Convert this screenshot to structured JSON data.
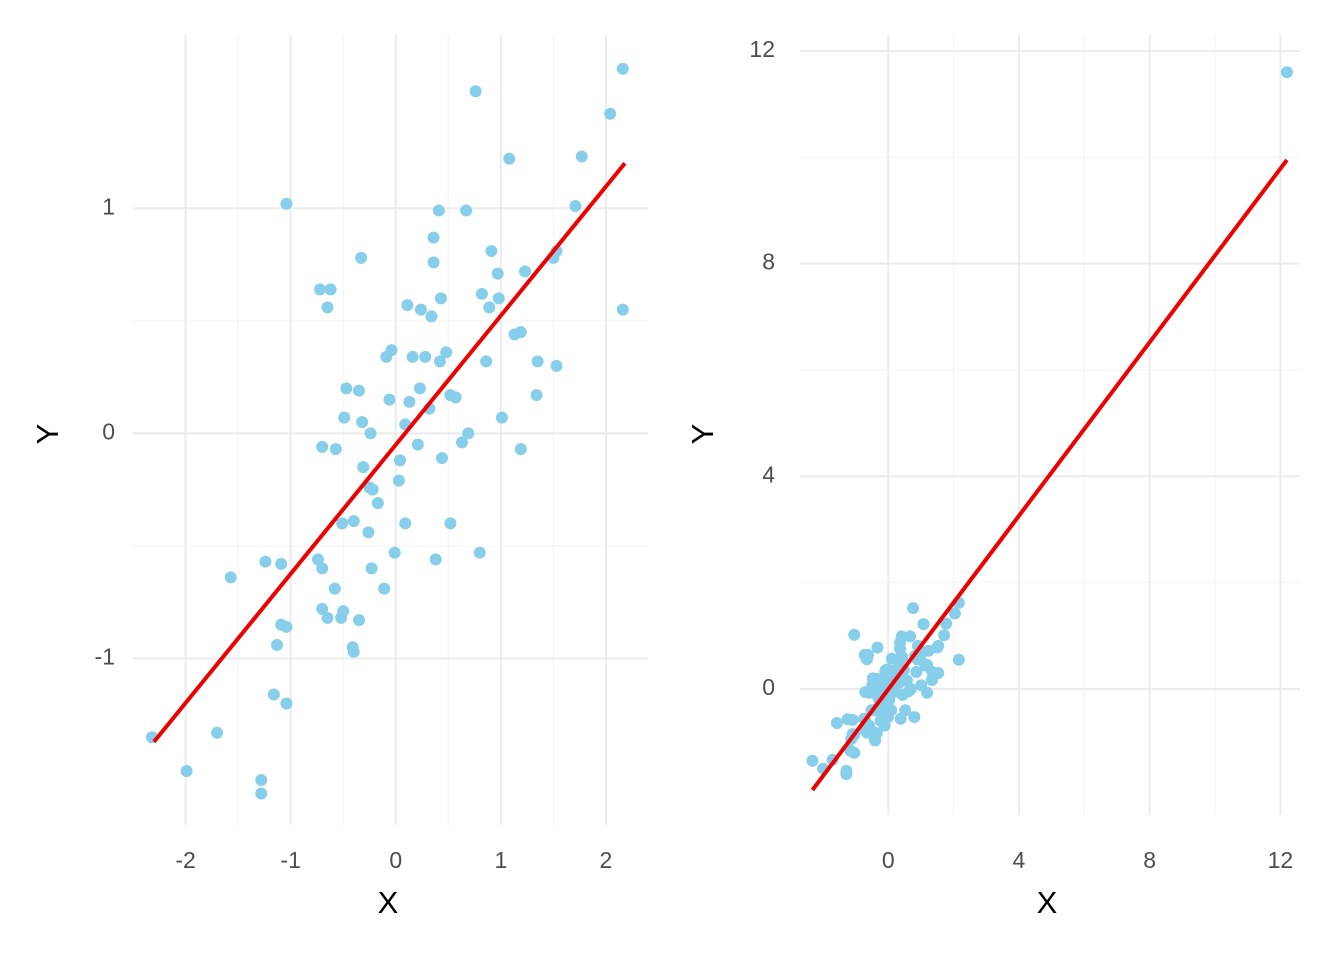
{
  "chart_data": [
    {
      "type": "scatter",
      "xlabel": "X",
      "ylabel": "Y",
      "xlim": [
        -2.5,
        2.4
      ],
      "ylim": [
        -1.74,
        1.77
      ],
      "xticks": [
        -2,
        -1,
        0,
        1,
        2
      ],
      "yticks": [
        -1,
        0,
        1
      ],
      "grid": true,
      "points": {
        "color": "#87ceeb",
        "x": [
          -2.32,
          -1.99,
          -1.7,
          -1.57,
          -1.28,
          -1.28,
          -1.24,
          -1.16,
          -1.13,
          -1.09,
          -1.09,
          -1.04,
          -1.04,
          -1.04,
          -0.74,
          -0.72,
          -0.7,
          -0.7,
          -0.7,
          -0.65,
          -0.62,
          -0.65,
          -0.57,
          -0.58,
          -0.52,
          -0.5,
          -0.51,
          -0.49,
          -0.47,
          -0.41,
          -0.4,
          -0.4,
          -0.35,
          -0.35,
          -0.33,
          -0.32,
          -0.31,
          -0.26,
          -0.25,
          -0.24,
          -0.23,
          -0.22,
          -0.17,
          -0.11,
          -0.09,
          -0.06,
          -0.04,
          -0.01,
          0.03,
          0.04,
          0.09,
          0.09,
          0.11,
          0.13,
          0.16,
          0.21,
          0.23,
          0.24,
          0.28,
          0.32,
          0.34,
          0.36,
          0.36,
          0.38,
          0.42,
          0.41,
          0.43,
          0.44,
          0.48,
          0.52,
          0.52,
          0.57,
          0.63,
          0.67,
          0.69,
          0.76,
          0.8,
          0.82,
          0.86,
          0.89,
          0.91,
          0.97,
          0.98,
          1.01,
          1.08,
          1.13,
          1.19,
          1.19,
          1.23,
          1.34,
          1.35,
          1.5,
          1.53,
          1.53,
          1.71,
          1.77,
          2.04,
          2.16,
          2.16
        ],
        "y": [
          -1.35,
          -1.5,
          -1.33,
          -0.64,
          -1.54,
          -1.6,
          -0.57,
          -1.16,
          -0.94,
          -0.58,
          -0.85,
          -0.86,
          1.02,
          -1.2,
          -0.56,
          0.64,
          -0.6,
          -0.06,
          -0.78,
          -0.82,
          0.64,
          0.56,
          -0.07,
          -0.69,
          -0.82,
          -0.79,
          -0.4,
          0.07,
          0.2,
          -0.95,
          -0.97,
          -0.39,
          0.19,
          -0.83,
          0.78,
          0.05,
          -0.15,
          -0.44,
          -0.24,
          0.0,
          -0.6,
          -0.25,
          -0.31,
          -0.69,
          0.34,
          0.15,
          0.37,
          -0.53,
          -0.21,
          -0.12,
          0.04,
          -0.4,
          0.57,
          0.14,
          0.34,
          -0.05,
          0.2,
          0.55,
          0.34,
          0.11,
          0.52,
          0.76,
          0.87,
          -0.56,
          0.32,
          0.99,
          0.6,
          -0.11,
          0.36,
          0.17,
          -0.4,
          0.16,
          -0.04,
          0.99,
          0.0,
          1.52,
          -0.53,
          0.62,
          0.32,
          0.56,
          0.81,
          0.71,
          0.6,
          0.07,
          1.22,
          0.44,
          0.45,
          -0.07,
          0.72,
          0.17,
          0.32,
          0.78,
          0.81,
          0.3,
          1.01,
          1.23,
          1.42,
          1.62,
          0.55
        ]
      },
      "fit": {
        "color": "#ee0000",
        "x": [
          -2.3,
          2.18
        ],
        "y": [
          -1.37,
          1.2
        ]
      }
    },
    {
      "type": "scatter",
      "xlabel": "X",
      "ylabel": "Y",
      "xlim": [
        -2.7,
        12.6
      ],
      "ylim": [
        -2.37,
        12.3
      ],
      "xticks": [
        0,
        4,
        8,
        12
      ],
      "yticks": [
        0,
        4,
        8,
        12
      ],
      "grid": true,
      "points": {
        "color": "#87ceeb",
        "x": [
          -2.32,
          -1.99,
          -1.7,
          -1.57,
          -1.28,
          -1.28,
          -1.24,
          -1.16,
          -1.13,
          -1.09,
          -1.09,
          -1.04,
          -1.04,
          -1.04,
          -0.74,
          -0.72,
          -0.7,
          -0.7,
          -0.7,
          -0.65,
          -0.62,
          -0.65,
          -0.57,
          -0.58,
          -0.52,
          -0.5,
          -0.51,
          -0.49,
          -0.47,
          -0.41,
          -0.4,
          -0.4,
          -0.35,
          -0.35,
          -0.33,
          -0.32,
          -0.31,
          -0.26,
          -0.25,
          -0.24,
          -0.23,
          -0.22,
          -0.17,
          -0.11,
          -0.09,
          -0.06,
          -0.04,
          -0.01,
          0.03,
          0.04,
          0.09,
          0.09,
          0.11,
          0.13,
          0.16,
          0.21,
          0.23,
          0.24,
          0.28,
          0.32,
          0.34,
          0.36,
          0.36,
          0.38,
          0.42,
          0.41,
          0.43,
          0.44,
          0.48,
          0.52,
          0.52,
          0.57,
          0.63,
          0.67,
          0.69,
          0.76,
          0.8,
          0.82,
          0.86,
          0.89,
          0.91,
          0.97,
          0.98,
          1.01,
          1.08,
          1.13,
          1.19,
          1.19,
          1.23,
          1.34,
          1.35,
          1.5,
          1.53,
          1.53,
          1.71,
          1.77,
          2.04,
          2.16,
          2.16,
          12.2
        ],
        "y": [
          -1.35,
          -1.5,
          -1.33,
          -0.64,
          -1.54,
          -1.6,
          -0.57,
          -1.16,
          -0.94,
          -0.58,
          -0.85,
          -0.86,
          1.02,
          -1.2,
          -0.56,
          0.64,
          -0.6,
          -0.06,
          -0.78,
          -0.82,
          0.64,
          0.56,
          -0.07,
          -0.69,
          -0.82,
          -0.79,
          -0.4,
          0.07,
          0.2,
          -0.95,
          -0.97,
          -0.39,
          0.19,
          -0.83,
          0.78,
          0.05,
          -0.15,
          -0.44,
          -0.24,
          0.0,
          -0.6,
          -0.25,
          -0.31,
          -0.69,
          0.34,
          0.15,
          0.37,
          -0.53,
          -0.21,
          -0.12,
          0.04,
          -0.4,
          0.57,
          0.14,
          0.34,
          -0.05,
          0.2,
          0.55,
          0.34,
          0.11,
          0.52,
          0.76,
          0.87,
          -0.56,
          0.32,
          0.99,
          0.6,
          -0.11,
          0.36,
          0.17,
          -0.4,
          0.16,
          -0.04,
          0.99,
          0.0,
          1.52,
          -0.53,
          0.62,
          0.32,
          0.56,
          0.81,
          0.71,
          0.6,
          0.07,
          1.22,
          0.44,
          0.45,
          -0.07,
          0.72,
          0.17,
          0.32,
          0.78,
          0.81,
          0.3,
          1.01,
          1.23,
          1.42,
          1.62,
          0.55,
          11.6
        ]
      },
      "fit": {
        "color": "#ee0000",
        "x": [
          -2.32,
          12.2
        ],
        "y": [
          -1.9,
          9.95
        ]
      }
    }
  ]
}
